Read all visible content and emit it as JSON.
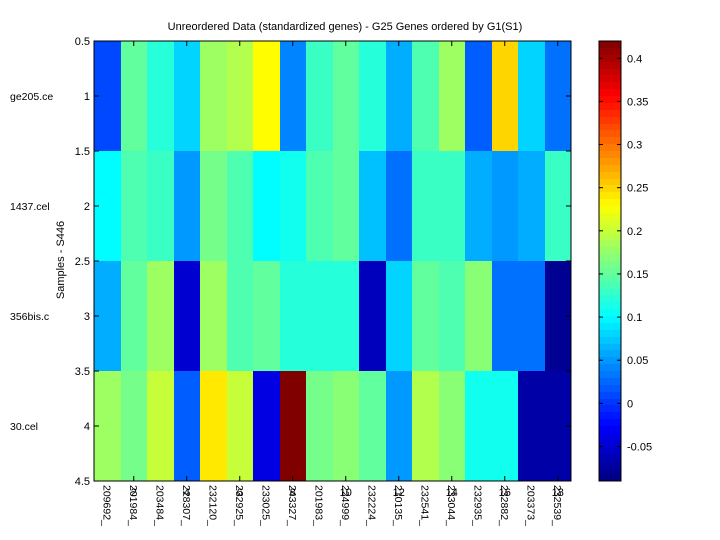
{
  "chart_data": {
    "type": "heatmap",
    "title": "Unreordered Data (standardized genes) - G25 Genes ordered by G1(S1)",
    "ylabel": "Samples - S446",
    "xlabel": "",
    "rows": [
      "ge205.ce",
      "1437.cel",
      "356bis.c",
      "30.cel"
    ],
    "columns": [
      "209692_",
      "201984_",
      "203484_",
      "228307_",
      "232120_",
      "232925_",
      "233025_",
      "243327_",
      "201983_",
      "224999_",
      "232224_",
      "210135_",
      "232541_",
      "233044_",
      "232935_",
      "232882_",
      "203373_",
      "232539_"
    ],
    "values": [
      [
        0.01,
        0.15,
        0.12,
        0.08,
        0.18,
        0.19,
        0.23,
        0.04,
        0.13,
        0.15,
        0.12,
        0.06,
        0.14,
        0.18,
        0.02,
        0.25,
        0.08,
        0.03
      ],
      [
        0.1,
        0.14,
        0.13,
        0.05,
        0.16,
        0.14,
        0.1,
        0.11,
        0.14,
        0.15,
        0.07,
        0.03,
        0.13,
        0.13,
        0.06,
        0.05,
        0.06,
        0.13
      ],
      [
        0.06,
        0.15,
        0.18,
        -0.05,
        0.18,
        0.14,
        0.15,
        0.12,
        0.12,
        0.12,
        -0.06,
        0.08,
        0.15,
        0.14,
        0.17,
        0.03,
        0.03,
        -0.08
      ],
      [
        0.18,
        0.16,
        0.2,
        0.02,
        0.24,
        0.2,
        -0.04,
        0.42,
        0.16,
        0.17,
        0.15,
        0.05,
        0.19,
        0.17,
        0.11,
        0.11,
        -0.07,
        -0.07
      ]
    ],
    "y_ticks": [
      0.5,
      1,
      1.5,
      2,
      2.5,
      3,
      3.5,
      4,
      4.5
    ],
    "x_ticks": [
      2,
      4,
      6,
      8,
      10,
      12,
      14,
      16,
      18
    ],
    "xlim": [
      0.5,
      18.5
    ],
    "ylim": [
      0.5,
      4.5
    ],
    "colormap": "jet",
    "clim": [
      -0.09,
      0.42
    ],
    "colorbar_ticks": [
      -0.05,
      0,
      0.05,
      0.1,
      0.15,
      0.2,
      0.25,
      0.3,
      0.35,
      0.4
    ]
  }
}
